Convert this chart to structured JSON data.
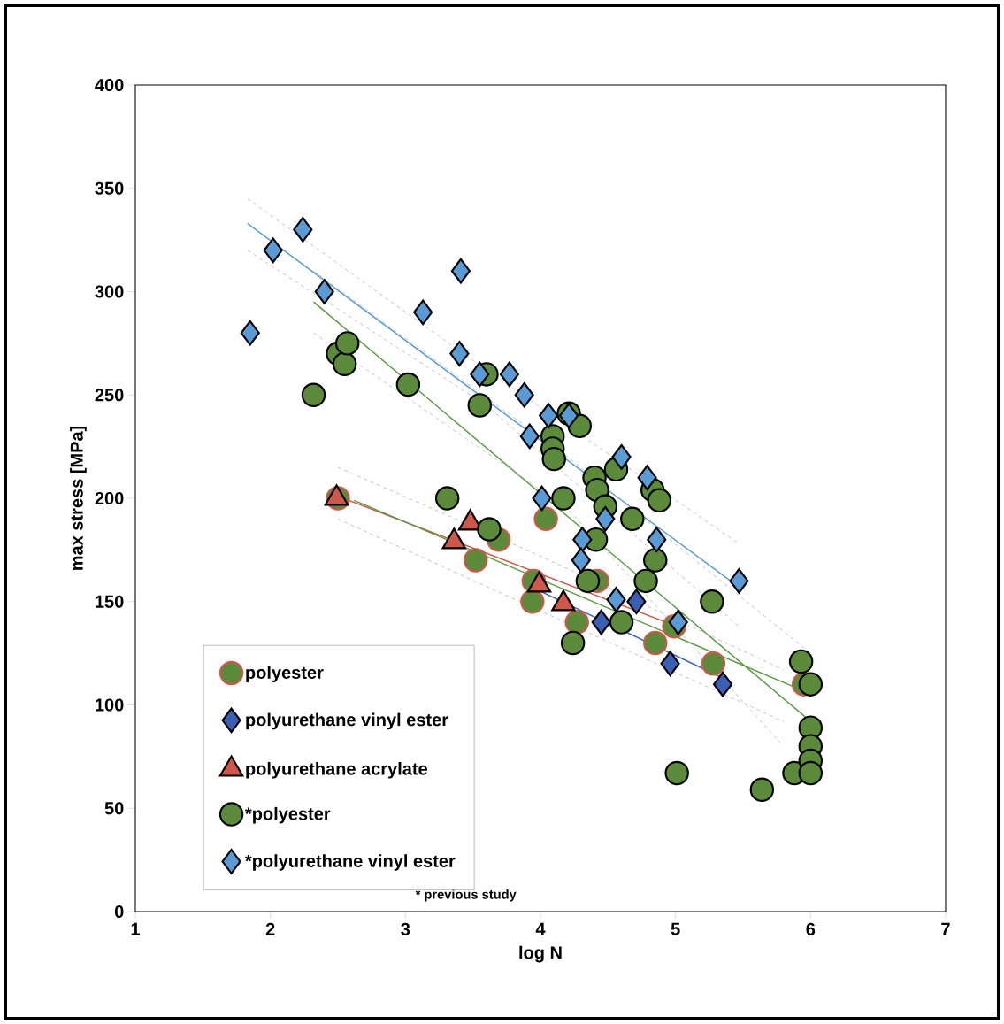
{
  "chart_data": {
    "type": "scatter",
    "xlabel": "log N",
    "ylabel": "max stress [MPa]",
    "xlim": [
      1,
      7
    ],
    "ylim": [
      0,
      400
    ],
    "xticks": [
      1,
      2,
      3,
      4,
      5,
      6,
      7
    ],
    "yticks": [
      0,
      50,
      100,
      150,
      200,
      250,
      300,
      350,
      400
    ],
    "grid": false,
    "legend": "bottom left",
    "annotations": [
      "* previous study"
    ],
    "series": [
      {
        "name": "polyester",
        "marker": "circle",
        "color": "#5b8a3a",
        "x": [
          2.5,
          3.52,
          3.69,
          3.94,
          3.95,
          4.04,
          4.27,
          4.42,
          4.85,
          4.99,
          5.28,
          5.95
        ],
        "values": [
          200,
          170,
          180,
          150,
          160,
          190,
          140,
          160,
          130,
          138,
          120,
          110
        ]
      },
      {
        "name": "polyurethane vinyl ester",
        "marker": "diamond",
        "color": "#3a5fb4",
        "x": [
          4.45,
          4.71,
          4.96,
          5.35
        ],
        "values": [
          140,
          150,
          120,
          110
        ]
      },
      {
        "name": "polyurethane acrylate",
        "marker": "triangle",
        "color": "#d0584a",
        "x": [
          2.49,
          3.36,
          3.48,
          3.99,
          4.17
        ],
        "values": [
          200,
          179,
          188,
          158,
          149
        ]
      },
      {
        "name": "*polyester",
        "marker": "circle",
        "color": "#5b8a3a",
        "x": [
          2.32,
          2.5,
          2.55,
          2.57,
          3.02,
          3.31,
          3.55,
          3.6,
          3.62,
          4.09,
          4.09,
          4.1,
          4.17,
          4.21,
          4.24,
          4.29,
          4.35,
          4.4,
          4.41,
          4.42,
          4.48,
          4.56,
          4.6,
          4.68,
          4.78,
          4.83,
          4.85,
          4.88,
          5.01,
          5.27,
          5.64,
          5.88,
          5.93,
          6.0,
          6.0,
          6.0,
          6.0,
          6.0
        ],
        "values": [
          250,
          270,
          265,
          275,
          255,
          200,
          245,
          260,
          185,
          230,
          224,
          219,
          200,
          241,
          130,
          235,
          160,
          210,
          180,
          204,
          196,
          214,
          140,
          190,
          160,
          204,
          170,
          199,
          67,
          150,
          59,
          67,
          121,
          110,
          89,
          80,
          73,
          67
        ]
      },
      {
        "name": "*polyurethane vinyl ester",
        "marker": "diamond",
        "color": "#5b9bd5",
        "x": [
          1.85,
          2.02,
          2.24,
          2.4,
          3.13,
          3.41,
          3.4,
          3.55,
          3.77,
          3.88,
          3.92,
          4.06,
          4.21,
          4.01,
          4.31,
          4.3,
          4.48,
          4.56,
          4.6,
          4.79,
          4.86,
          5.02,
          5.47
        ],
        "values": [
          280,
          320,
          330,
          300,
          290,
          310,
          270,
          260,
          260,
          250,
          230,
          240,
          240,
          200,
          180,
          170,
          190,
          151,
          220,
          210,
          180,
          140,
          160
        ]
      },
      {
        "type": "line",
        "line_style": "solid",
        "color": "#5b9bd5",
        "x": [
          1.83,
          5.47
        ],
        "values": [
          333,
          157
        ]
      },
      {
        "type": "line",
        "line_style": "solid",
        "color": "#5b9a45",
        "x": [
          2.32,
          6.0
        ],
        "values": [
          295,
          92
        ]
      },
      {
        "type": "line",
        "line_style": "solid",
        "color": "#c8503c",
        "x": [
          2.5,
          4.93
        ],
        "values": [
          201,
          140
        ]
      },
      {
        "type": "line",
        "line_style": "solid",
        "color": "#5b9a45",
        "x": [
          2.62,
          5.94
        ],
        "values": [
          199,
          107
        ]
      },
      {
        "type": "line",
        "line_style": "solid",
        "color": "#3f5fc0",
        "x": [
          4.0,
          5.35
        ],
        "values": [
          155,
          113
        ]
      },
      {
        "type": "line",
        "line_style": "dashed",
        "color": "#b4b4bc",
        "x": [
          1.83,
          3.6,
          5.47
        ],
        "values": [
          345,
          262,
          178
        ]
      },
      {
        "type": "line",
        "line_style": "dashed",
        "color": "#b4b4bc",
        "x": [
          1.83,
          3.6,
          5.47
        ],
        "values": [
          320,
          245,
          138
        ]
      },
      {
        "type": "line",
        "line_style": "dashed",
        "color": "#b4b4bc",
        "x": [
          2.32,
          4.2,
          6.0
        ],
        "values": [
          310,
          220,
          125
        ]
      },
      {
        "type": "line",
        "line_style": "dashed",
        "color": "#b4b4bc",
        "x": [
          2.32,
          4.2,
          5.8
        ],
        "values": [
          280,
          195,
          80
        ]
      },
      {
        "type": "line",
        "line_style": "dashed",
        "color": "#b4b4bc",
        "x": [
          2.5,
          4.0,
          5.8
        ],
        "values": [
          215,
          172,
          117
        ]
      },
      {
        "type": "line",
        "line_style": "dashed",
        "color": "#b4b4bc",
        "x": [
          2.5,
          5.8
        ],
        "values": [
          190,
          92
        ]
      }
    ]
  }
}
